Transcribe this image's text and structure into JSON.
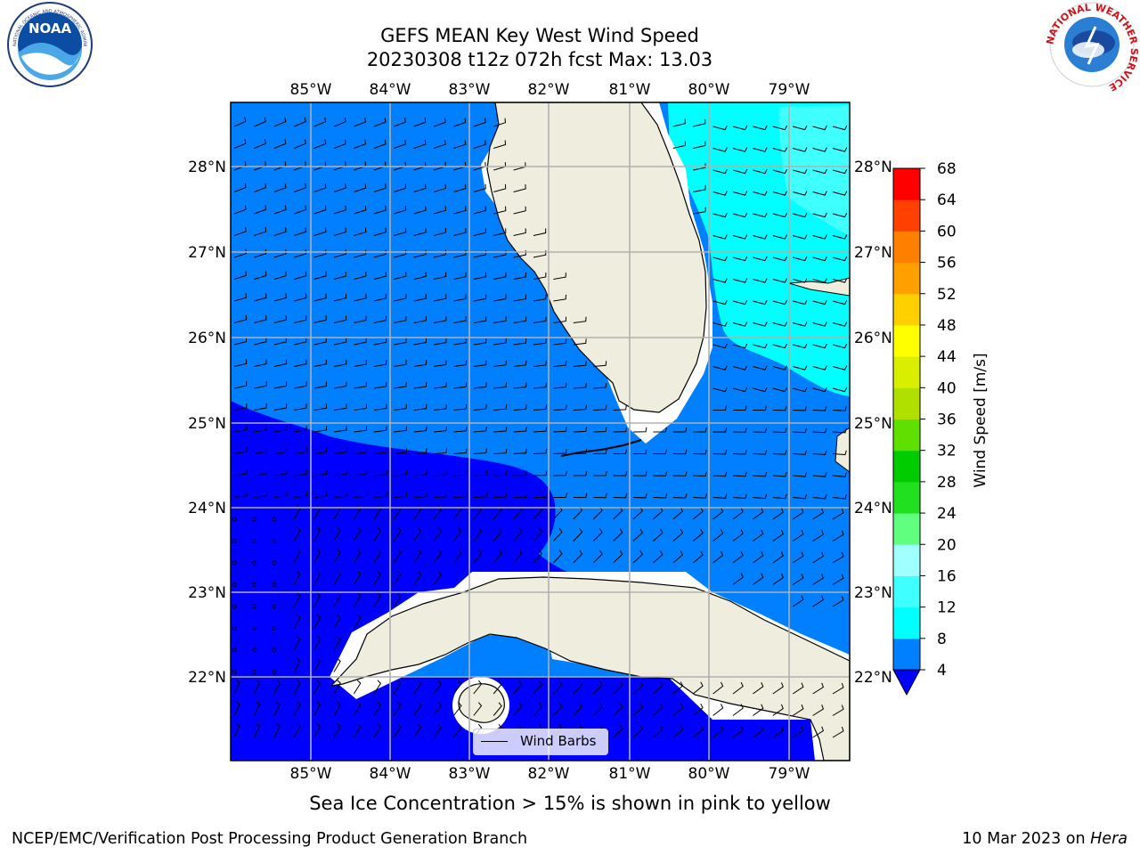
{
  "header": {
    "title_line1": "GEFS MEAN Key West Wind Speed",
    "title_line2": "20230308 t12z 072h fcst   Max: 13.03"
  },
  "logos": {
    "left": {
      "text": "NOAA",
      "ring_text": "NATIONAL OCEANIC AND ATMOSPHERIC ADMINISTRATION · U.S. DEPARTMENT OF COMMERCE"
    },
    "right": {
      "ring_text": "NATIONAL WEATHER SERVICE"
    }
  },
  "map": {
    "lon_labels": [
      "85°W",
      "84°W",
      "83°W",
      "82°W",
      "81°W",
      "80°W",
      "79°W"
    ],
    "lat_labels": [
      "28°N",
      "27°N",
      "26°N",
      "25°N",
      "24°N",
      "23°N",
      "22°N"
    ],
    "colors": {
      "land": "#eeedde",
      "speed_4_8": "#0080ff",
      "speed_lt4": "#0000ff",
      "speed_8_12": "#00ffff",
      "speed_12_16": "#40ffff",
      "gridline": "#b0b0b0",
      "coast": "#000000"
    },
    "legend": {
      "label": "Wind Barbs"
    }
  },
  "colorbar": {
    "label": "Wind Speed [m/s]",
    "ticks": [
      "4",
      "8",
      "12",
      "16",
      "20",
      "24",
      "28",
      "32",
      "36",
      "40",
      "44",
      "48",
      "52",
      "56",
      "60",
      "64",
      "68"
    ],
    "colors": [
      "#0080ff",
      "#00ffff",
      "#40ffff",
      "#a0ffff",
      "#60ff80",
      "#20e020",
      "#00cc00",
      "#60e000",
      "#b0e000",
      "#d8f000",
      "#ffff00",
      "#ffd000",
      "#ffa000",
      "#ff8000",
      "#ff4000",
      "#ff0000"
    ],
    "under_color": "#0000ff"
  },
  "note": "Sea Ice Concentration > 15% is shown in pink to yellow",
  "footer": {
    "left": "NCEP/EMC/Verification Post Processing Product Generation Branch",
    "right_prefix": "10 Mar 2023 on ",
    "right_machine": "Hera"
  }
}
